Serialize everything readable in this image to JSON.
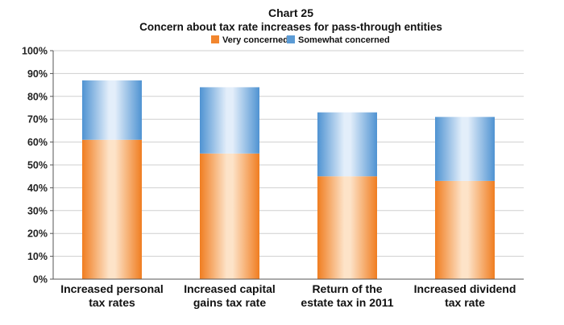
{
  "chart_data": {
    "type": "bar",
    "stacked": true,
    "title": "Chart 25",
    "subtitle": "Concern about tax rate increases for pass-through entities",
    "categories": [
      [
        "Increased personal",
        "tax rates"
      ],
      [
        "Increased capital",
        "gains tax rate"
      ],
      [
        "Return of the",
        "estate tax in 2011"
      ],
      [
        "Increased dividend",
        "tax rate"
      ]
    ],
    "series": [
      {
        "name": "Very concerned",
        "values": [
          61,
          55,
          45,
          43
        ],
        "color": "#f2862e"
      },
      {
        "name": "Somewhat concerned",
        "values": [
          26,
          29,
          28,
          28
        ],
        "color": "#5b9bd5"
      }
    ],
    "ylim": [
      0,
      100
    ],
    "yticks": [
      0,
      10,
      20,
      30,
      40,
      50,
      60,
      70,
      80,
      90,
      100
    ],
    "ytick_format": "{v}%",
    "legend_position": "top-center",
    "grid": true
  }
}
